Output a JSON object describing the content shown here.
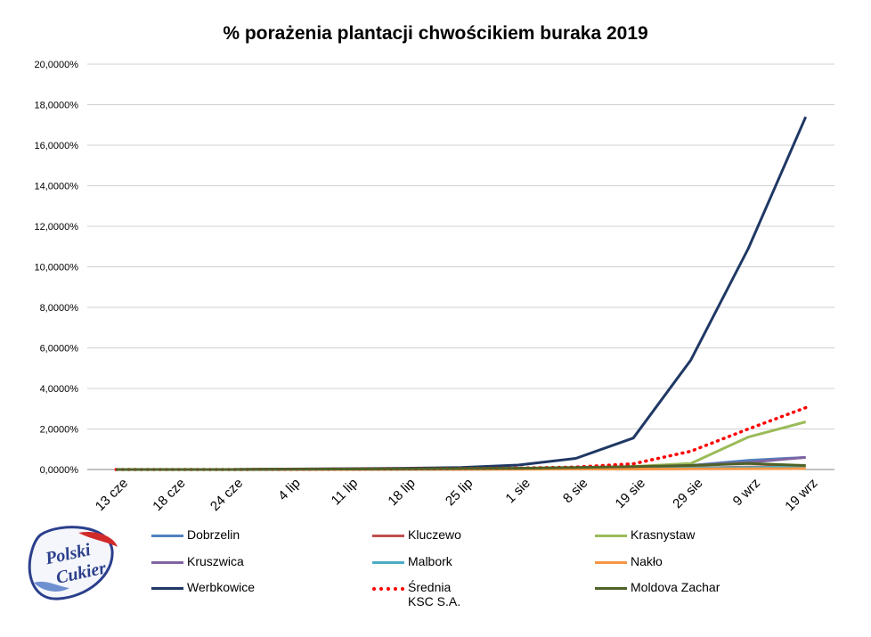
{
  "chart_data": {
    "type": "line",
    "title": "%  porażenia plantacji chwościkiem buraka 2019",
    "categories": [
      "13 cze",
      "18 cze",
      "24 cze",
      "4 lip",
      "11 lip",
      "18 lip",
      "25 lip",
      "1 sie",
      "8 sie",
      "19 sie",
      "29 sie",
      "9 wrz",
      "19 wrz"
    ],
    "ylim": [
      0,
      20
    ],
    "yticks": [
      0,
      2,
      4,
      6,
      8,
      10,
      12,
      14,
      16,
      18,
      20
    ],
    "ytick_labels": [
      "0,0000%",
      "2,0000%",
      "4,0000%",
      "6,0000%",
      "8,0000%",
      "10,0000%",
      "12,0000%",
      "14,0000%",
      "16,0000%",
      "18,0000%",
      "20,0000%"
    ],
    "grid": true,
    "legend_position": "bottom",
    "series": [
      {
        "name": "Dobrzelin",
        "color": "#4f81bd",
        "style": "solid",
        "values": [
          0,
          0,
          0,
          0.01,
          0.02,
          0.03,
          0.04,
          0.05,
          0.07,
          0.1,
          0.2,
          0.45,
          0.6
        ]
      },
      {
        "name": "Kluczewo",
        "color": "#c0504d",
        "style": "solid",
        "values": [
          0,
          0,
          0,
          0,
          0,
          0.01,
          0.01,
          0.02,
          0.03,
          0.05,
          0.08,
          0.12,
          0.15
        ]
      },
      {
        "name": "Krasnystaw",
        "color": "#9bbb59",
        "style": "solid",
        "values": [
          0,
          0,
          0,
          0.01,
          0.02,
          0.03,
          0.04,
          0.05,
          0.08,
          0.15,
          0.3,
          1.6,
          2.35
        ]
      },
      {
        "name": "Kruszwica",
        "color": "#8064a2",
        "style": "solid",
        "values": [
          0,
          0,
          0,
          0.01,
          0.02,
          0.03,
          0.04,
          0.05,
          0.08,
          0.12,
          0.2,
          0.35,
          0.6
        ]
      },
      {
        "name": "Malbork",
        "color": "#4bacc6",
        "style": "solid",
        "values": [
          0,
          0,
          0,
          0,
          0.01,
          0.01,
          0.02,
          0.02,
          0.03,
          0.05,
          0.07,
          0.1,
          0.12
        ]
      },
      {
        "name": "Nakło",
        "color": "#f79646",
        "style": "solid",
        "values": [
          0,
          0,
          0,
          0,
          0,
          0.01,
          0.01,
          0.01,
          0.02,
          0.02,
          0.03,
          0.04,
          0.05
        ]
      },
      {
        "name": "Werbkowice",
        "color": "#1f3864",
        "style": "solid",
        "values": [
          0,
          0,
          0,
          0.02,
          0.04,
          0.06,
          0.1,
          0.22,
          0.55,
          1.55,
          5.4,
          10.9,
          17.4
        ]
      },
      {
        "name": "Średnia\nKSC S.A.",
        "color": "#ff0000",
        "style": "dotted",
        "values": [
          0,
          0,
          0,
          0.01,
          0.02,
          0.03,
          0.05,
          0.07,
          0.12,
          0.28,
          0.9,
          2.0,
          3.05
        ]
      },
      {
        "name": "Moldova Zachar",
        "color": "#4f6228",
        "style": "solid",
        "values": [
          0,
          0,
          0,
          0.01,
          0.02,
          0.03,
          0.05,
          0.06,
          0.1,
          0.14,
          0.2,
          0.3,
          0.2
        ]
      }
    ]
  },
  "logo": {
    "line1": "Polski",
    "line2": "Cukier"
  }
}
